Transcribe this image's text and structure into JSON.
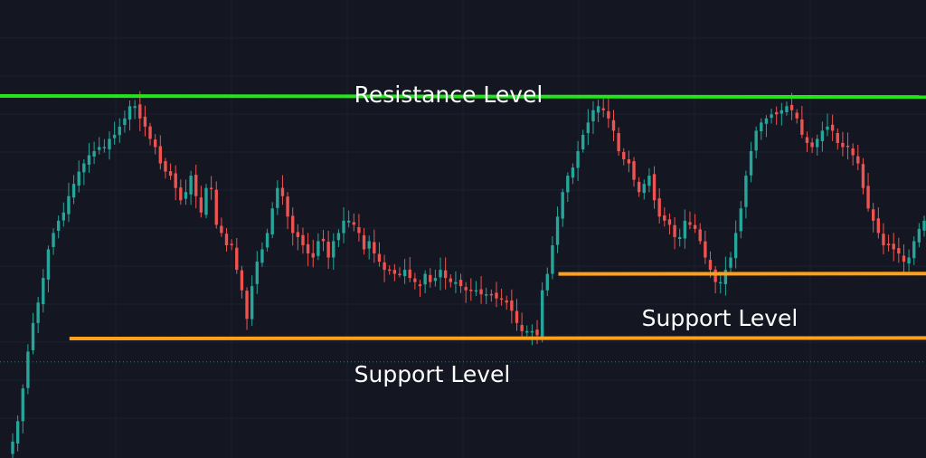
{
  "chart_data": {
    "type": "candlestick",
    "grid": true,
    "colors": {
      "background": "#141722",
      "grid": "#1c2030",
      "up": "#26a69a",
      "down": "#ef5350",
      "resistance": "#22e51a",
      "support": "#ff9f1a",
      "guide": "#26a69a"
    },
    "ylim": [
      0.0,
      10.0
    ],
    "candle_count": 180,
    "closes": [
      0.4,
      0.9,
      1.7,
      2.6,
      3.3,
      3.8,
      4.4,
      5.1,
      5.5,
      5.8,
      6.0,
      6.4,
      6.7,
      7.0,
      7.2,
      7.4,
      7.5,
      7.6,
      7.6,
      7.8,
      7.9,
      8.1,
      8.3,
      8.6,
      8.6,
      8.3,
      8.1,
      7.8,
      7.6,
      7.2,
      7.0,
      6.9,
      6.6,
      6.3,
      6.5,
      6.9,
      6.4,
      6.0,
      6.6,
      6.6,
      5.7,
      5.5,
      5.2,
      5.2,
      4.6,
      4.1,
      3.4,
      4.2,
      4.8,
      5.1,
      5.5,
      6.1,
      6.6,
      6.4,
      5.9,
      5.5,
      5.4,
      5.2,
      5.0,
      4.9,
      5.3,
      5.3,
      4.9,
      5.3,
      5.5,
      5.8,
      5.8,
      5.7,
      5.5,
      5.1,
      5.3,
      5.0,
      4.8,
      4.6,
      4.6,
      4.5,
      4.5,
      4.6,
      4.4,
      4.3,
      4.2,
      4.5,
      4.3,
      4.4,
      4.6,
      4.4,
      4.3,
      4.3,
      4.2,
      4.1,
      4.1,
      4.1,
      4.0,
      4.0,
      4.0,
      3.9,
      3.9,
      3.8,
      3.6,
      3.3,
      3.1,
      3.1,
      3.1,
      3.0,
      4.1,
      4.5,
      5.2,
      5.9,
      6.5,
      6.9,
      7.1,
      7.5,
      7.9,
      8.2,
      8.5,
      8.6,
      8.5,
      8.3,
      8.0,
      7.5,
      7.3,
      7.2,
      6.8,
      6.5,
      6.7,
      6.9,
      6.3,
      5.9,
      5.8,
      5.7,
      5.4,
      5.4,
      5.8,
      5.7,
      5.6,
      5.3,
      4.9,
      4.6,
      4.3,
      4.3,
      4.6,
      4.9,
      5.5,
      6.1,
      6.9,
      7.5,
      8.0,
      8.2,
      8.3,
      8.4,
      8.4,
      8.5,
      8.6,
      8.5,
      8.3,
      7.9,
      7.7,
      7.6,
      7.8,
      8.0,
      8.1,
      8.0,
      7.7,
      7.6,
      7.6,
      7.4,
      7.2,
      6.6,
      6.1,
      5.8,
      5.5,
      5.2,
      5.2,
      5.1,
      5.0,
      4.8,
      4.9,
      5.3,
      5.6,
      5.8
    ],
    "levels": [
      {
        "kind": "resistance",
        "value": 8.85,
        "x_start": 0.0,
        "x_end": 1.0,
        "slope_per_width": -0.12
      },
      {
        "kind": "support",
        "value": 2.92,
        "x_start": 0.075,
        "x_end": 1.0,
        "slope_per_width": 0.07
      },
      {
        "kind": "support",
        "value": 4.5,
        "x_start": 0.603,
        "x_end": 1.0,
        "slope_per_width": 0.09
      }
    ],
    "annotations": [
      "Resistance Level",
      "Support Level",
      "Support Level"
    ],
    "guide_level": 2.35
  }
}
